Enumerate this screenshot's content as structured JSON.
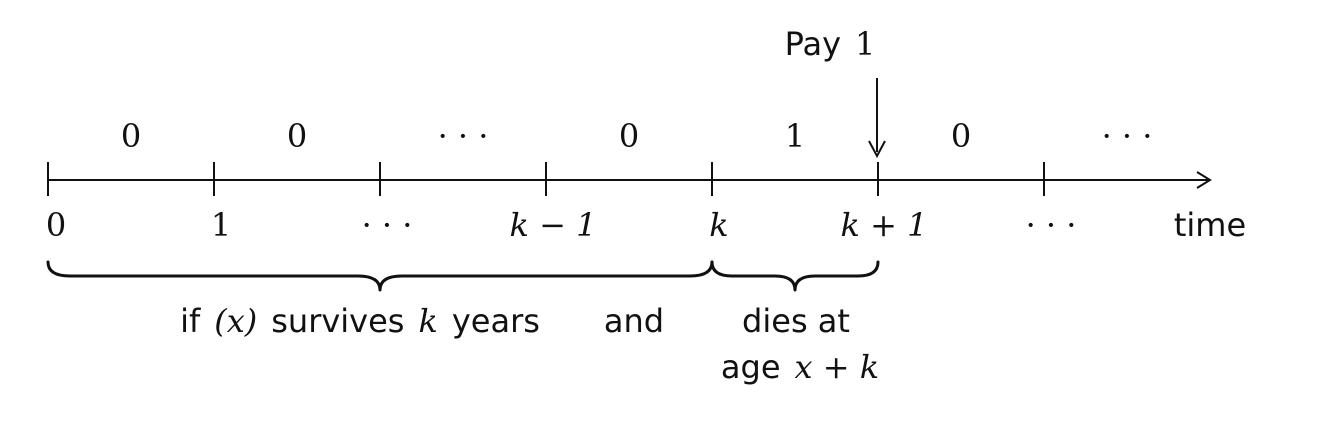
{
  "pay_label": {
    "word": "Pay",
    "amount": "1"
  },
  "payments": [
    "0",
    "0",
    "· · ·",
    "0",
    "1",
    "0",
    "· · ·"
  ],
  "ticks": [
    "0",
    "1",
    "· · ·",
    "k − 1",
    "k",
    "k + 1",
    "· · ·"
  ],
  "axis_label": "time",
  "brace_survive": {
    "text_if": "if",
    "text_x": "(x)",
    "text_survives": "survives",
    "text_k": "k",
    "text_years": "years"
  },
  "connector": "and",
  "brace_death": {
    "line1": "dies at",
    "line2_word": "age",
    "line2_math": "x + k"
  }
}
